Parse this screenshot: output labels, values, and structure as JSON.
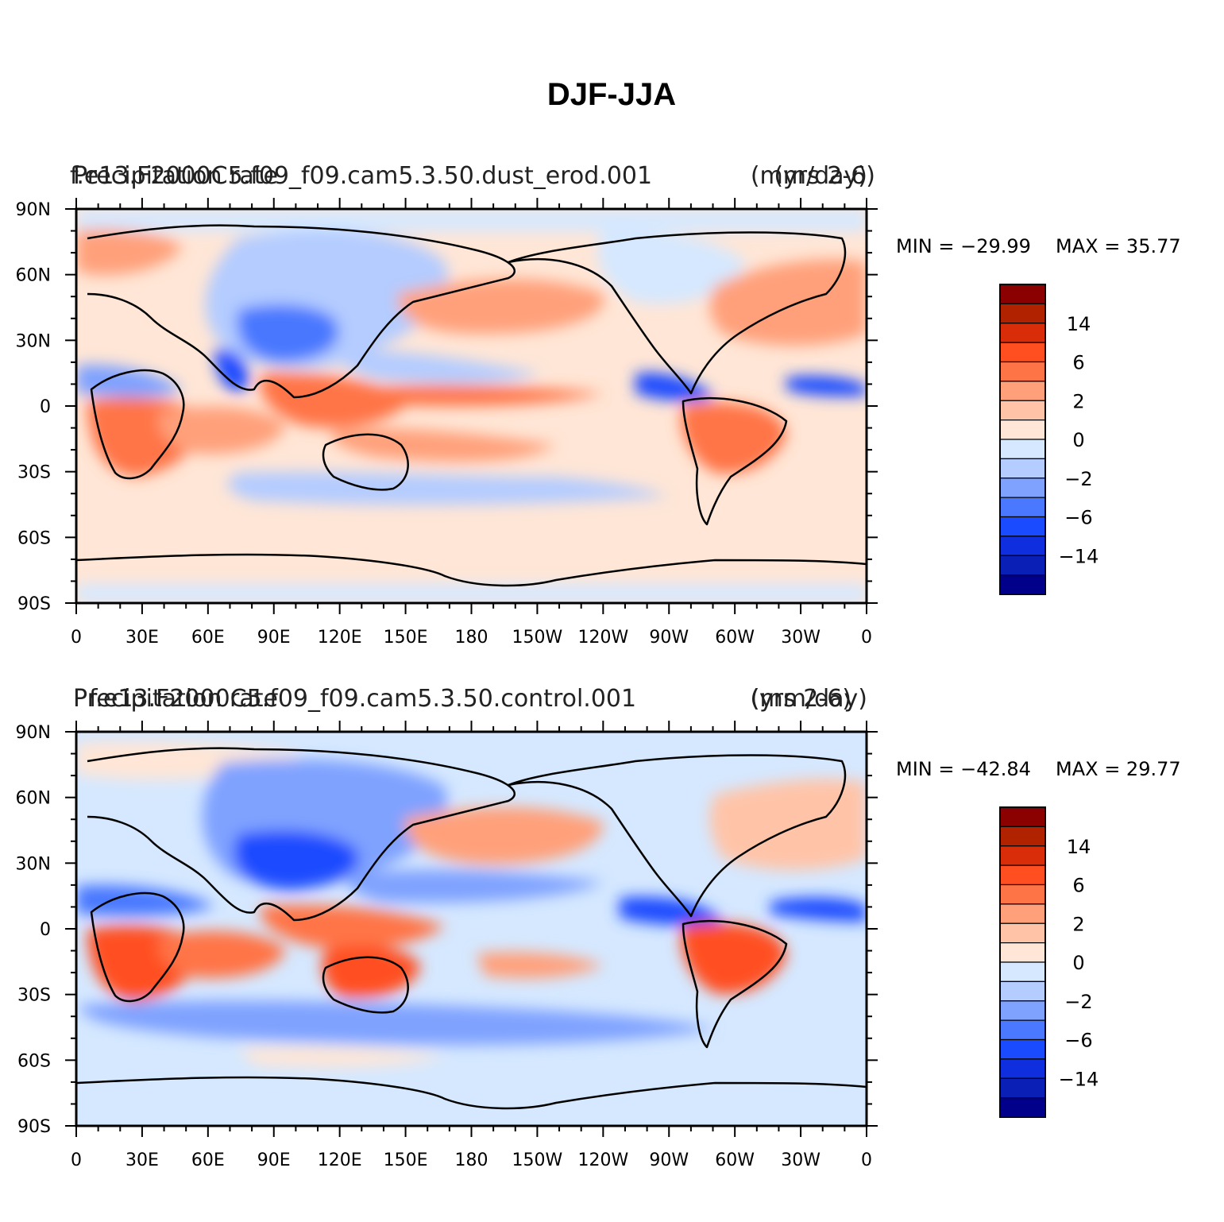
{
  "title": "DJF-JJA",
  "chart_data": [
    {
      "type": "heatmap",
      "panel": "top",
      "left_label": "Precipitation rate",
      "center_label": "f.e13.F2000C5.f09_f09.cam5.3.50.dust_erod.001",
      "right_label": "(mm/day)",
      "overlay_left": "f.e13.F2000C5.f09_f09.cam5.3.50.dust_erod.001",
      "overlay_right": "(yrs 2-6)",
      "min_label": "MIN = −29.99",
      "max_label": "MAX =   35.77",
      "min": -29.99,
      "max": 35.77,
      "xlabels": [
        "0",
        "30E",
        "60E",
        "90E",
        "120E",
        "150E",
        "180",
        "150W",
        "120W",
        "90W",
        "60W",
        "30W",
        "0"
      ],
      "ylabels": [
        "90N",
        "60N",
        "30N",
        "0",
        "30S",
        "60S",
        "90S"
      ],
      "xlim": [
        0,
        360
      ],
      "ylim": [
        -90,
        90
      ]
    },
    {
      "type": "heatmap",
      "panel": "bottom",
      "left_label": "Precipitation rate",
      "center_label": "f.e13.F2000C5.f09_f09.cam5.3.50.control.001",
      "right_label": "(mm/day)",
      "overlay_right": "(yrs 2-6)",
      "min_label": "MIN = −42.84",
      "max_label": "MAX =   29.77",
      "min": -42.84,
      "max": 29.77,
      "xlabels": [
        "0",
        "30E",
        "60E",
        "90E",
        "120E",
        "150E",
        "180",
        "150W",
        "120W",
        "90W",
        "60W",
        "30W",
        "0"
      ],
      "ylabels": [
        "90N",
        "60N",
        "30N",
        "0",
        "30S",
        "60S",
        "90S"
      ],
      "xlim": [
        0,
        360
      ],
      "ylim": [
        -90,
        90
      ]
    }
  ],
  "colorbar": {
    "levels": [
      -14,
      -10,
      -6,
      -4,
      -2,
      -1,
      0,
      1,
      2,
      4,
      6,
      10,
      14,
      20
    ],
    "labels": [
      "14",
      "6",
      "2",
      "0",
      "−2",
      "−6",
      "−14"
    ],
    "colors": [
      "#00008b",
      "#0a1fb5",
      "#0f2ede",
      "#1b4bff",
      "#4a78ff",
      "#7fa2ff",
      "#b4ccff",
      "#d5e8ff",
      "#ffe6d6",
      "#ffc4a8",
      "#ffa07a",
      "#ff7447",
      "#ff4f20",
      "#d92d0a",
      "#b02200",
      "#8b0000"
    ]
  }
}
